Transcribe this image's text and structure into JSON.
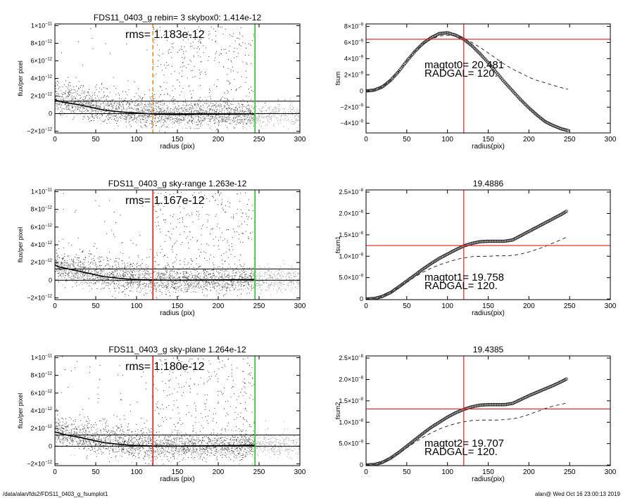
{
  "footer": {
    "path": "/data/alan/fds2/FDS11_0403_g_fsumplot1",
    "stamp": "alan@  Wed Oct 16 23:00:13 2019"
  },
  "colors": {
    "red": "#e02020",
    "green": "#22cc22",
    "orange": "#f0902a",
    "gray_points": "#9a9a9a",
    "dark_points": "#303030"
  },
  "chart_data": [
    {
      "id": "p1",
      "type": "scatter",
      "title": "FDS11_0403_g rebin= 3   skybox0:  1.414e-12",
      "annotations": [
        "rms= 1.183e-12"
      ],
      "xlabel": "radius (pix)",
      "ylabel": "flux/per pixel",
      "xlim": [
        0,
        300
      ],
      "ylim": [
        -2.2e-12,
        1.02e-11
      ],
      "xticks": [
        0,
        50,
        100,
        150,
        200,
        250,
        300
      ],
      "yticks": [
        {
          "v": -2e-12,
          "m": "−2×10",
          "e": "−12"
        },
        {
          "v": 0,
          "m": "0",
          "e": ""
        },
        {
          "v": 2e-12,
          "m": "2×10",
          "e": "−12"
        },
        {
          "v": 4e-12,
          "m": "4×10",
          "e": "−12"
        },
        {
          "v": 6e-12,
          "m": "6×10",
          "e": "−12"
        },
        {
          "v": 8e-12,
          "m": "8×10",
          "e": "−12"
        },
        {
          "v": 1e-11,
          "m": "1×10",
          "e": "−11"
        }
      ],
      "hlines": [
        0,
        1.414e-12
      ],
      "vlines": [
        {
          "x": 120,
          "color": "orange",
          "dash": true
        },
        {
          "x": 245,
          "color": "green",
          "dash": false
        }
      ],
      "profile": {
        "x": [
          0,
          5,
          10,
          20,
          30,
          40,
          50,
          60,
          70,
          80,
          90,
          100,
          110,
          120,
          140,
          160,
          180,
          200,
          220,
          245
        ],
        "y": [
          1.6e-12,
          1.4e-12,
          1.3e-12,
          1.15e-12,
          1e-12,
          8e-13,
          6e-13,
          4e-13,
          3e-13,
          2e-13,
          1.2e-13,
          7e-14,
          2e-14,
          -5e-14,
          -1e-13,
          -1e-13,
          -8e-14,
          -8e-14,
          -5e-14,
          -2e-14
        ]
      },
      "seed": 11
    },
    {
      "id": "p2",
      "type": "scatter",
      "title": "FDS11_0403_g sky-range  1.263e-12",
      "annotations": [
        "rms= 1.167e-12"
      ],
      "xlabel": "radius (pix)",
      "ylabel": "flux/per pixel",
      "xlim": [
        0,
        300
      ],
      "ylim": [
        -2.2e-12,
        1.02e-11
      ],
      "xticks": [
        0,
        50,
        100,
        150,
        200,
        250,
        300
      ],
      "yticks": [
        {
          "v": -2e-12,
          "m": "−2×10",
          "e": "−12"
        },
        {
          "v": 0,
          "m": "0",
          "e": ""
        },
        {
          "v": 2e-12,
          "m": "2×10",
          "e": "−12"
        },
        {
          "v": 4e-12,
          "m": "4×10",
          "e": "−12"
        },
        {
          "v": 6e-12,
          "m": "6×10",
          "e": "−12"
        },
        {
          "v": 8e-12,
          "m": "8×10",
          "e": "−12"
        },
        {
          "v": 1e-11,
          "m": "1×10",
          "e": "−11"
        }
      ],
      "hlines": [
        0,
        1.263e-12
      ],
      "vlines": [
        {
          "x": 120,
          "color": "red",
          "dash": false
        },
        {
          "x": 245,
          "color": "green",
          "dash": false
        }
      ],
      "profile": {
        "x": [
          0,
          5,
          10,
          20,
          30,
          40,
          50,
          60,
          70,
          80,
          90,
          100,
          110,
          120,
          140,
          160,
          180,
          200,
          220,
          245
        ],
        "y": [
          1.7e-12,
          1.5e-12,
          1.4e-12,
          1.2e-12,
          1e-12,
          8e-13,
          6e-13,
          4e-13,
          3e-13,
          2e-13,
          1.2e-13,
          8e-14,
          4e-14,
          2e-14,
          0,
          0,
          2e-14,
          3e-14,
          5e-14,
          8e-14
        ]
      },
      "seed": 23
    },
    {
      "id": "p3",
      "type": "scatter",
      "title": "FDS11_0403_g sky-plane  1.264e-12",
      "annotations": [
        "rms= 1.180e-12"
      ],
      "xlabel": "radius (pix)",
      "ylabel": "flux/per pixel",
      "xlim": [
        0,
        300
      ],
      "ylim": [
        -2.2e-12,
        1.02e-11
      ],
      "xticks": [
        0,
        50,
        100,
        150,
        200,
        250,
        300
      ],
      "yticks": [
        {
          "v": -2e-12,
          "m": "−2×10",
          "e": "−12"
        },
        {
          "v": 0,
          "m": "0",
          "e": ""
        },
        {
          "v": 2e-12,
          "m": "2×10",
          "e": "−12"
        },
        {
          "v": 4e-12,
          "m": "4×10",
          "e": "−12"
        },
        {
          "v": 6e-12,
          "m": "6×10",
          "e": "−12"
        },
        {
          "v": 8e-12,
          "m": "8×10",
          "e": "−12"
        },
        {
          "v": 1e-11,
          "m": "1×10",
          "e": "−11"
        }
      ],
      "hlines": [
        0,
        1.264e-12
      ],
      "vlines": [
        {
          "x": 120,
          "color": "red",
          "dash": false
        },
        {
          "x": 245,
          "color": "green",
          "dash": false
        }
      ],
      "profile": {
        "x": [
          0,
          5,
          10,
          20,
          30,
          40,
          50,
          60,
          70,
          80,
          90,
          100,
          110,
          120,
          140,
          160,
          180,
          200,
          220,
          245
        ],
        "y": [
          1.6e-12,
          1.5e-12,
          1.35e-12,
          1.15e-12,
          1e-12,
          8e-13,
          6e-13,
          4e-13,
          3e-13,
          2e-13,
          1.2e-13,
          8e-14,
          4e-14,
          2e-14,
          1e-14,
          2e-14,
          3e-14,
          5e-14,
          7e-14,
          1e-13
        ]
      },
      "seed": 37
    },
    {
      "id": "p4",
      "type": "line",
      "title": "",
      "annotations": [
        "magtot0=  20.481",
        "RADGAL=    120."
      ],
      "xlabel": "radius(pix)",
      "ylabel": "fsum",
      "xlim": [
        0,
        300
      ],
      "ylim": [
        -5.2e-09,
        8.3e-09
      ],
      "xticks": [
        0,
        50,
        100,
        150,
        200,
        250,
        300
      ],
      "yticks": [
        {
          "v": -4e-09,
          "m": "−4×10",
          "e": "−9"
        },
        {
          "v": -2e-09,
          "m": "−2×10",
          "e": "−9"
        },
        {
          "v": 0,
          "m": "0",
          "e": ""
        },
        {
          "v": 2e-09,
          "m": "2×10",
          "e": "−9"
        },
        {
          "v": 4e-09,
          "m": "4×10",
          "e": "−9"
        },
        {
          "v": 6e-09,
          "m": "6×10",
          "e": "−9"
        },
        {
          "v": 8e-09,
          "m": "8×10",
          "e": "−9"
        }
      ],
      "vline": 120,
      "hline": 6.4e-09,
      "circles": {
        "x": [
          0,
          10,
          20,
          30,
          40,
          50,
          60,
          70,
          80,
          90,
          100,
          110,
          120,
          130,
          140,
          150,
          160,
          170,
          180,
          190,
          200,
          210,
          220,
          230,
          240,
          248
        ],
        "y": [
          0,
          1e-10,
          5e-10,
          1.3e-09,
          2.4e-09,
          3.7e-09,
          4.9e-09,
          5.9e-09,
          6.6e-09,
          7.1e-09,
          7.2e-09,
          6.9e-09,
          6.4e-09,
          5.6e-09,
          4.6e-09,
          3.5e-09,
          2.3e-09,
          1.1e-09,
          0,
          -1.1e-09,
          -2.1e-09,
          -3e-09,
          -3.8e-09,
          -4.3e-09,
          -4.7e-09,
          -4.9e-09
        ]
      },
      "dashed": {
        "x": [
          0,
          10,
          20,
          30,
          40,
          50,
          60,
          70,
          80,
          90,
          100,
          110,
          120,
          130,
          140,
          150,
          160,
          170,
          180,
          190,
          200,
          210,
          220,
          230,
          240,
          248
        ],
        "y": [
          0,
          1e-10,
          5e-10,
          1.3e-09,
          2.4e-09,
          3.7e-09,
          4.9e-09,
          5.8e-09,
          6.4e-09,
          6.8e-09,
          6.9e-09,
          6.8e-09,
          6.5e-09,
          6e-09,
          5.4e-09,
          4.7e-09,
          4e-09,
          3.3e-09,
          2.7e-09,
          2.2e-09,
          1.7e-09,
          1.3e-09,
          1e-09,
          7e-10,
          4e-10,
          2e-10
        ]
      }
    },
    {
      "id": "p5",
      "type": "line",
      "title": "19.4886",
      "annotations": [
        "magtot1=  19.758",
        "RADGAL=    120."
      ],
      "xlabel": "radius(pix)",
      "ylabel": "fsum1",
      "xlim": [
        0,
        300
      ],
      "ylim": [
        -1.5e-10,
        2.55e-08
      ],
      "xticks": [
        0,
        50,
        100,
        150,
        200,
        250,
        300
      ],
      "yticks": [
        {
          "v": 0,
          "m": "0",
          "e": ""
        },
        {
          "v": 5e-09,
          "m": "5.0×10",
          "e": "−9"
        },
        {
          "v": 1e-08,
          "m": "1.0×10",
          "e": "−8"
        },
        {
          "v": 1.5e-08,
          "m": "1.5×10",
          "e": "−8"
        },
        {
          "v": 2e-08,
          "m": "2.0×10",
          "e": "−8"
        },
        {
          "v": 2.5e-08,
          "m": "2.5×10",
          "e": "−8"
        }
      ],
      "vline": 120,
      "hline": 1.25e-08,
      "circles": {
        "x": [
          0,
          10,
          20,
          30,
          40,
          50,
          60,
          70,
          80,
          90,
          100,
          110,
          120,
          130,
          140,
          150,
          160,
          170,
          180,
          190,
          200,
          210,
          220,
          230,
          240,
          247
        ],
        "y": [
          0,
          1e-10,
          6e-10,
          1.5e-09,
          2.8e-09,
          4.2e-09,
          5.6e-09,
          7e-09,
          8.3e-09,
          9.5e-09,
          1.05e-08,
          1.15e-08,
          1.24e-08,
          1.3e-08,
          1.34e-08,
          1.35e-08,
          1.35e-08,
          1.35e-08,
          1.38e-08,
          1.48e-08,
          1.58e-08,
          1.68e-08,
          1.78e-08,
          1.88e-08,
          1.98e-08,
          2.06e-08
        ]
      },
      "dashed": {
        "x": [
          0,
          10,
          20,
          30,
          40,
          50,
          60,
          70,
          80,
          90,
          100,
          110,
          120,
          130,
          140,
          150,
          160,
          170,
          180,
          190,
          200,
          210,
          220,
          230,
          240,
          247
        ],
        "y": [
          0,
          1e-10,
          6e-10,
          1.5e-09,
          2.7e-09,
          4e-09,
          5.2e-09,
          6.3e-09,
          7.2e-09,
          8e-09,
          8.6e-09,
          9.2e-09,
          9.6e-09,
          9.9e-09,
          1e-08,
          1e-08,
          1.01e-08,
          1.01e-08,
          1.02e-08,
          1.05e-08,
          1.1e-08,
          1.16e-08,
          1.23e-08,
          1.31e-08,
          1.39e-08,
          1.45e-08
        ]
      }
    },
    {
      "id": "p6",
      "type": "line",
      "title": "19.4385",
      "annotations": [
        "magtot2=  19.707",
        "RADGAL=    120."
      ],
      "xlabel": "radius(pix)",
      "ylabel": "fsum2",
      "xlim": [
        0,
        300
      ],
      "ylim": [
        -1.5e-10,
        2.55e-08
      ],
      "xticks": [
        0,
        50,
        100,
        150,
        200,
        250,
        300
      ],
      "yticks": [
        {
          "v": 0,
          "m": "0",
          "e": ""
        },
        {
          "v": 5e-09,
          "m": "5.0×10",
          "e": "−9"
        },
        {
          "v": 1e-08,
          "m": "1.0×10",
          "e": "−8"
        },
        {
          "v": 1.5e-08,
          "m": "1.5×10",
          "e": "−8"
        },
        {
          "v": 2e-08,
          "m": "2.0×10",
          "e": "−8"
        },
        {
          "v": 2.5e-08,
          "m": "2.5×10",
          "e": "−8"
        }
      ],
      "vline": 120,
      "hline": 1.31e-08,
      "circles": {
        "x": [
          0,
          10,
          20,
          30,
          40,
          50,
          60,
          70,
          80,
          90,
          100,
          110,
          120,
          130,
          140,
          150,
          160,
          170,
          180,
          190,
          200,
          210,
          220,
          230,
          240,
          247
        ],
        "y": [
          0,
          1e-10,
          6e-10,
          1.6e-09,
          2.9e-09,
          4.4e-09,
          5.9e-09,
          7.4e-09,
          8.8e-09,
          1e-08,
          1.12e-08,
          1.22e-08,
          1.3e-08,
          1.36e-08,
          1.4e-08,
          1.41e-08,
          1.41e-08,
          1.41e-08,
          1.44e-08,
          1.53e-08,
          1.62e-08,
          1.7e-08,
          1.78e-08,
          1.86e-08,
          1.95e-08,
          2.02e-08
        ]
      },
      "dashed": {
        "x": [
          0,
          10,
          20,
          30,
          40,
          50,
          60,
          70,
          80,
          90,
          100,
          110,
          120,
          130,
          140,
          150,
          160,
          170,
          180,
          190,
          200,
          210,
          220,
          230,
          240,
          247
        ],
        "y": [
          0,
          1e-10,
          6e-10,
          1.5e-09,
          2.7e-09,
          4e-09,
          5.3e-09,
          6.5e-09,
          7.5e-09,
          8.4e-09,
          9.1e-09,
          9.7e-09,
          1.01e-08,
          1.04e-08,
          1.05e-08,
          1.05e-08,
          1.05e-08,
          1.06e-08,
          1.08e-08,
          1.12e-08,
          1.18e-08,
          1.25e-08,
          1.32e-08,
          1.38e-08,
          1.42e-08,
          1.45e-08
        ]
      }
    }
  ]
}
